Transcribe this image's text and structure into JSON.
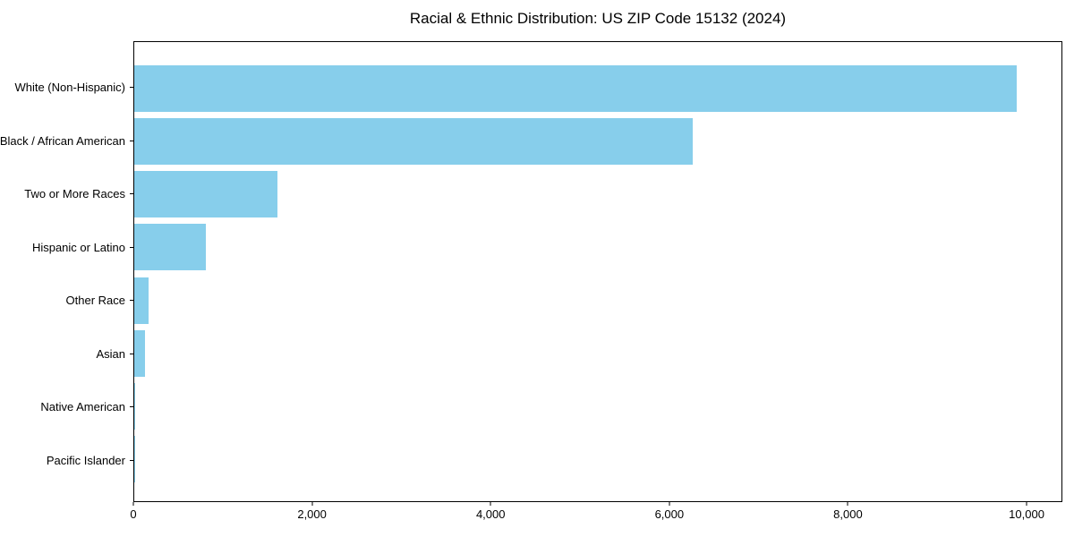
{
  "title": "Racial & Ethnic Distribution: US ZIP Code 15132 (2024)",
  "chart_data": {
    "type": "bar",
    "orientation": "horizontal",
    "title": "Racial & Ethnic Distribution: US ZIP Code 15132 (2024)",
    "categories": [
      "White (Non-Hispanic)",
      "Black / African American",
      "Two or More Races",
      "Hispanic or Latino",
      "Other Race",
      "Asian",
      "Native American",
      "Pacific Islander"
    ],
    "values": [
      9900,
      6260,
      1610,
      800,
      160,
      120,
      15,
      4
    ],
    "xlabel": "",
    "ylabel": "",
    "xlim": [
      0,
      10400
    ],
    "x_ticks": [
      0,
      2000,
      4000,
      6000,
      8000,
      10000
    ],
    "x_tick_labels": [
      "0",
      "2,000",
      "4,000",
      "6,000",
      "8,000",
      "10,000"
    ],
    "bar_color": "#87CEEB",
    "frame": true,
    "grid": false,
    "legend": null
  }
}
